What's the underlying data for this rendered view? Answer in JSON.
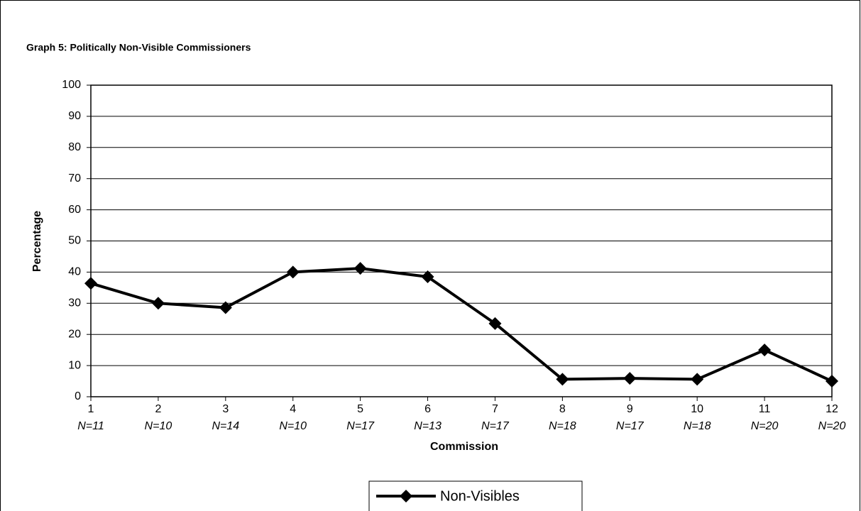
{
  "chart_data": {
    "type": "line",
    "title": "Graph 5: Politically Non-Visible Commissioners",
    "xlabel": "Commission",
    "ylabel": "Percentage",
    "categories": [
      "1",
      "2",
      "3",
      "4",
      "5",
      "6",
      "7",
      "8",
      "9",
      "10",
      "11",
      "12"
    ],
    "n_labels": [
      "N=11",
      "N=10",
      "N=14",
      "N=10",
      "N=17",
      "N=13",
      "N=17",
      "N=18",
      "N=17",
      "N=18",
      "N=20",
      "N=20"
    ],
    "series": [
      {
        "name": "Non-Visibles",
        "color": "#000000",
        "values": [
          36.4,
          30,
          28.6,
          40,
          41.2,
          38.5,
          23.5,
          5.6,
          5.9,
          5.6,
          15,
          5
        ]
      }
    ],
    "ylim": [
      0,
      100
    ],
    "yticks": [
      0,
      10,
      20,
      30,
      40,
      50,
      60,
      70,
      80,
      90,
      100
    ],
    "grid": true,
    "legend": "bottom"
  }
}
